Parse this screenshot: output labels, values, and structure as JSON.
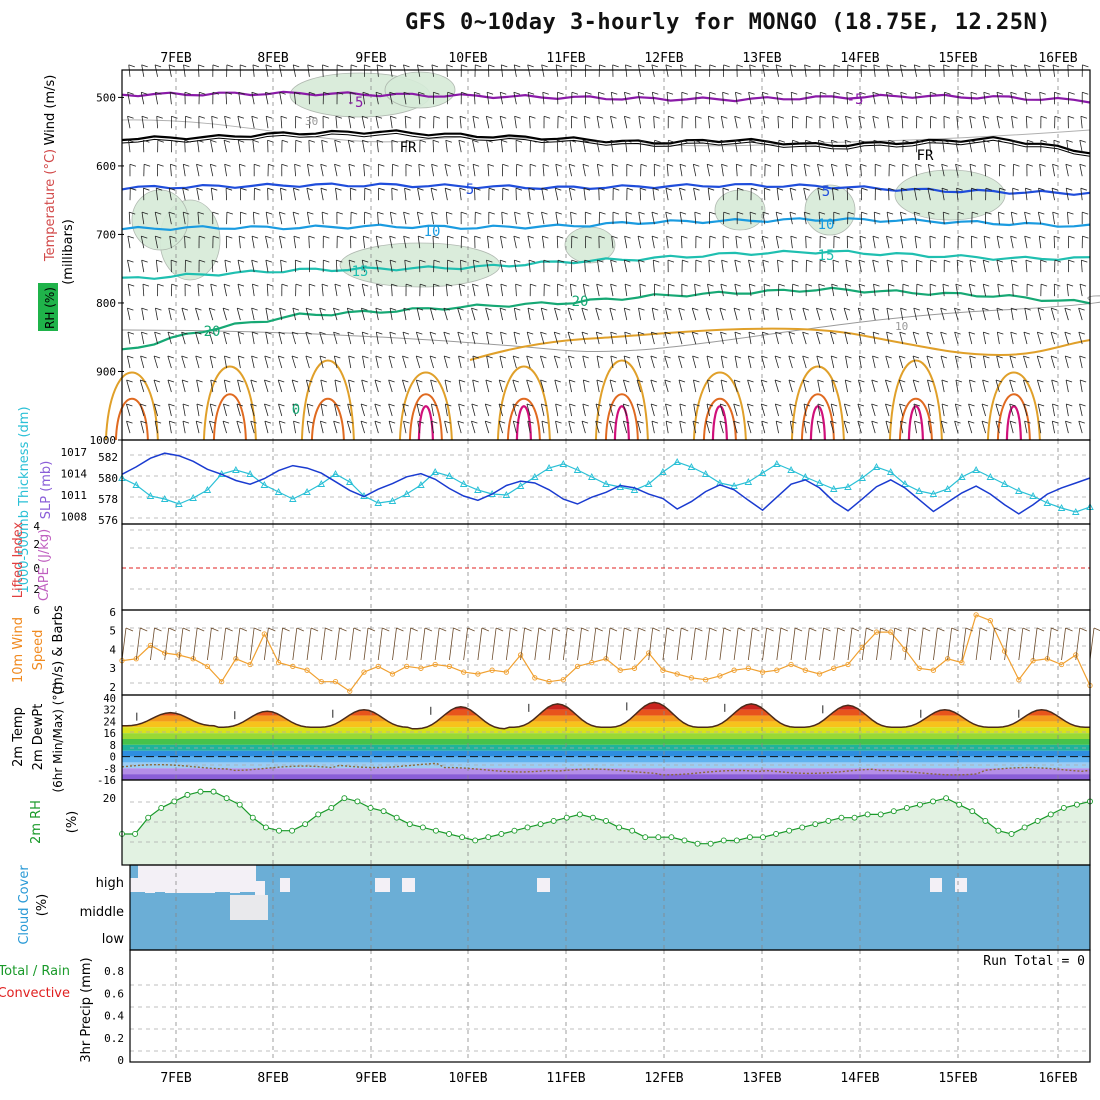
{
  "title": "GFS 0~10day 3-hourly for MONGO (18.75E, 12.25N)",
  "chart_data": {
    "type": "meteogram",
    "dates": [
      "7FEB",
      "8FEB",
      "9FEB",
      "10FEB",
      "11FEB",
      "12FEB",
      "13FEB",
      "14FEB",
      "15FEB",
      "16FEB"
    ],
    "upper_panel": {
      "ylabel": "(millibars)",
      "label_wind": "Wind (m/s)",
      "label_temp": "Temperature (°C)",
      "label_rh": "RH (%)",
      "y_ticks": [
        "500",
        "600",
        "700",
        "800",
        "900",
        "1000"
      ],
      "y_range": [
        460,
        1000
      ],
      "freezing_label": "FR",
      "isotherms": [
        {
          "label": "-5",
          "level": [
            496,
            495,
            494,
            496,
            498,
            500,
            502,
            503,
            500,
            498,
            500,
            505
          ],
          "color": "#8a1aa8"
        },
        {
          "label": "FR",
          "level": [
            560,
            558,
            552,
            550,
            556,
            560,
            566,
            562,
            570,
            565,
            560,
            580
          ],
          "color": "#000000"
        },
        {
          "label": "5",
          "level": [
            632,
            630,
            628,
            628,
            630,
            632,
            630,
            628,
            630,
            635,
            638,
            640
          ],
          "color": "#1f4ddb"
        },
        {
          "label": "10",
          "level": [
            692,
            690,
            690,
            688,
            690,
            688,
            682,
            680,
            678,
            680,
            684,
            688
          ],
          "color": "#1a9be0"
        },
        {
          "label": "15",
          "level": [
            765,
            758,
            752,
            750,
            748,
            740,
            735,
            728,
            725,
            730,
            735,
            735
          ],
          "color": "#1fbfb0"
        },
        {
          "label": "20",
          "level": [
            870,
            838,
            818,
            812,
            805,
            800,
            790,
            785,
            780,
            785,
            790,
            800
          ],
          "color": "#16a874"
        }
      ],
      "rh_label_30": "30",
      "rh_label_10": "10",
      "contour_labels": [
        "-5",
        "FR",
        "5",
        "10",
        "15",
        "20",
        "-5",
        "FR",
        "5",
        "10",
        "15",
        "20",
        "0"
      ]
    },
    "thickness_panel": {
      "label_thick": "1000-500mb Thickness (dm)",
      "label_slp": "SLP (mb)",
      "thickness_ticks": [
        "582",
        "580",
        "578",
        "576"
      ],
      "slp_ticks": [
        "1017",
        "1014",
        "1011",
        "1008"
      ],
      "thickness": [
        580.2,
        579.5,
        578.4,
        578.1,
        577.6,
        578.2,
        579.0,
        580.6,
        581.0,
        580.6,
        579.5,
        578.8,
        578.1,
        578.8,
        579.6,
        580.6,
        579.8,
        578.4,
        577.7,
        577.9,
        578.6,
        579.5,
        580.8,
        580.4,
        579.6,
        579.0,
        578.6,
        578.5,
        579.4,
        580.3,
        581.2,
        581.6,
        581.0,
        580.3,
        579.6,
        579.3,
        579.0,
        579.6,
        580.8,
        581.8,
        581.3,
        580.6,
        579.7,
        579.4,
        579.8,
        580.7,
        581.6,
        581.0,
        580.3,
        579.7,
        579.1,
        579.3,
        580.2,
        581.3,
        580.8,
        579.6,
        578.9,
        578.6,
        579.1,
        580.3,
        581.0,
        580.3,
        579.6,
        578.9,
        578.4,
        577.7,
        577.2,
        576.8,
        577.3
      ],
      "slp": [
        1014.2,
        1015.4,
        1016.8,
        1017.6,
        1017.2,
        1016.3,
        1015.0,
        1014.2,
        1013.2,
        1012.6,
        1013.5,
        1014.8,
        1015.6,
        1015.2,
        1014.4,
        1013.0,
        1011.6,
        1010.6,
        1011.8,
        1012.7,
        1013.8,
        1014.3,
        1013.4,
        1011.9,
        1010.7,
        1010.0,
        1011.0,
        1012.4,
        1013.1,
        1012.8,
        1011.7,
        1010.2,
        1009.4,
        1010.5,
        1011.3,
        1012.4,
        1012.0,
        1011.0,
        1010.3,
        1008.6,
        1009.8,
        1011.4,
        1012.5,
        1011.7,
        1010.0,
        1008.4,
        1010.5,
        1012.6,
        1013.3,
        1012.0,
        1009.8,
        1008.3,
        1010.2,
        1012.2,
        1013.3,
        1012.0,
        1010.1,
        1008.2,
        1009.7,
        1011.2,
        1012.3,
        1011.0,
        1009.3,
        1007.8,
        1009.3,
        1011.0,
        1012.0,
        1012.8,
        1013.6
      ]
    },
    "cape_panel": {
      "label_li": "Lifted Index",
      "label_cape": "CAPE (J/kg)",
      "y_ticks": [
        "-4",
        "-2",
        "0",
        "2",
        "4",
        "6"
      ]
    },
    "wind10m_panel": {
      "label": "10m Wind Speed (m/s) & Barbs",
      "y_ticks": [
        "6",
        "5",
        "4",
        "3",
        "2"
      ],
      "speed": [
        3.5,
        3.6,
        4.3,
        3.9,
        3.8,
        3.6,
        3.2,
        2.4,
        3.6,
        3.3,
        4.9,
        3.4,
        3.2,
        3.0,
        2.4,
        2.4,
        1.9,
        2.9,
        3.2,
        2.8,
        3.2,
        3.1,
        3.3,
        3.2,
        2.9,
        2.8,
        3.0,
        2.9,
        3.8,
        2.6,
        2.4,
        2.5,
        3.2,
        3.4,
        3.6,
        3.0,
        3.1,
        3.9,
        3.0,
        2.8,
        2.6,
        2.5,
        2.7,
        3.0,
        3.1,
        2.9,
        3.0,
        3.3,
        3.0,
        2.8,
        3.1,
        3.3,
        4.2,
        5.0,
        5.0,
        4.1,
        3.1,
        3.0,
        3.6,
        3.4,
        5.9,
        5.6,
        4.0,
        2.5,
        3.5,
        3.6,
        3.3,
        3.8,
        2.2
      ]
    },
    "temp_panel": {
      "label_temp": "2m Temp",
      "label_dew": "2m DewPt",
      "label_range": "(6hr Min/Max) (°C)",
      "y_ticks": [
        "40",
        "32",
        "24",
        "16",
        "8",
        "0",
        "-8",
        "-16"
      ],
      "band_ticks": [
        "32",
        "24",
        "16",
        "8",
        "0",
        "-8"
      ],
      "temp_max": [
        30,
        31,
        32,
        34,
        36,
        37,
        36,
        35,
        32,
        32
      ],
      "temp_min": [
        21,
        20,
        20,
        19,
        20,
        20,
        20,
        20,
        20,
        20
      ],
      "dewpoint": [
        -7,
        -8,
        -6,
        -9,
        -10,
        -11,
        -10,
        -11,
        -9,
        -8
      ]
    },
    "rh_panel": {
      "label_rh": "2m RH",
      "label_pct": "(%)",
      "y_ticks": [
        "20"
      ],
      "rh": [
        8,
        8,
        13,
        16,
        18,
        20,
        21,
        21,
        19,
        17,
        13,
        10,
        9,
        9,
        11,
        14,
        16,
        19,
        18,
        16,
        15,
        13,
        11,
        10,
        9,
        8,
        7,
        6,
        7,
        8,
        9,
        10,
        11,
        12,
        13,
        14,
        13,
        12,
        10,
        9,
        7,
        7,
        7,
        6,
        5,
        5,
        6,
        6,
        7,
        7,
        8,
        9,
        10,
        11,
        12,
        13,
        13,
        14,
        14,
        15,
        16,
        17,
        18,
        19,
        17,
        15,
        12,
        9,
        8,
        10,
        12,
        14,
        16,
        17,
        18
      ]
    },
    "cloud_panel": {
      "label": "Cloud Cover (%)",
      "levels": [
        "high",
        "middle",
        "low"
      ]
    },
    "precip_panel": {
      "label_total": "Total / Rain",
      "label_conv": "Convective",
      "label_axis": "3hr Precip (mm)",
      "y_ticks": [
        "0.8",
        "0.6",
        "0.4",
        "0.2",
        "0"
      ],
      "run_total": "Run Total = 0"
    }
  }
}
